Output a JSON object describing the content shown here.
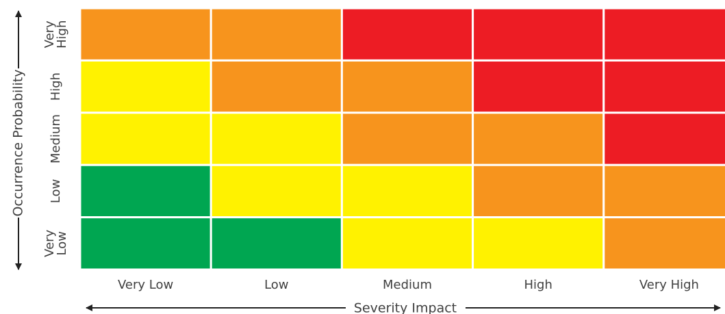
{
  "chart_data": {
    "type": "heatmap",
    "xlabel": "Severity Impact",
    "ylabel": "Occurrence Probability",
    "x_categories": [
      "Very Low",
      "Low",
      "Medium",
      "High",
      "Very High"
    ],
    "y_categories": [
      "Very High",
      "High",
      "Medium",
      "Low",
      "Very Low"
    ],
    "y_category_lines": [
      [
        "Very",
        "High"
      ],
      [
        "High"
      ],
      [
        "Medium"
      ],
      [
        "Low"
      ],
      [
        "Very",
        "Low"
      ]
    ],
    "level_colors": {
      "green": "#00a651",
      "yellow": "#fff200",
      "orange": "#f7941d",
      "red": "#ed1c24"
    },
    "matrix": [
      [
        "orange",
        "orange",
        "red",
        "red",
        "red"
      ],
      [
        "yellow",
        "orange",
        "orange",
        "red",
        "red"
      ],
      [
        "yellow",
        "yellow",
        "orange",
        "orange",
        "red"
      ],
      [
        "green",
        "yellow",
        "yellow",
        "orange",
        "orange"
      ],
      [
        "green",
        "green",
        "yellow",
        "yellow",
        "orange"
      ]
    ],
    "legend": "none"
  }
}
